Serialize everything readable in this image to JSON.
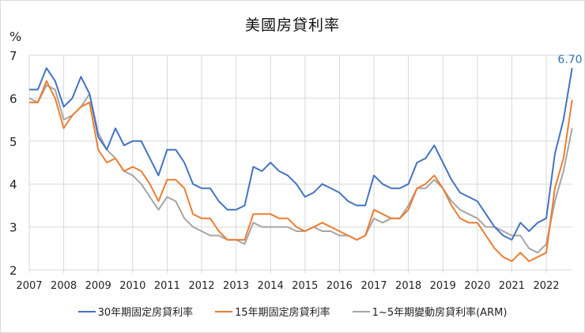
{
  "chart": {
    "title": "美國房貸利率",
    "y_unit": "%",
    "end_label": "6.70",
    "colors": {
      "s30": "#4472c4",
      "s15": "#ed7d31",
      "arm": "#a5a5a5",
      "label": "#2e75b6",
      "grid": "#d9d9d9"
    }
  },
  "legend": [
    {
      "label": "30年期固定房貸利率",
      "color": "#4472c4"
    },
    {
      "label": "15年期固定房貸利率",
      "color": "#ed7d31"
    },
    {
      "label": "1~5年期變動房貸利率(ARM)",
      "color": "#a5a5a5"
    }
  ],
  "chart_data": {
    "type": "line",
    "title": "美國房貸利率",
    "xlabel": "",
    "ylabel": "%",
    "ylim": [
      2,
      7
    ],
    "yticks": [
      2,
      3,
      4,
      5,
      6,
      7
    ],
    "xticks": [
      "2007",
      "2008",
      "2009",
      "2010",
      "2011",
      "2012",
      "2013",
      "2014",
      "2015",
      "2016",
      "2017",
      "2018",
      "2019",
      "2020",
      "2021",
      "2022"
    ],
    "grid": true,
    "legend_position": "bottom",
    "annotations": [
      {
        "text": "6.70",
        "x": 2022.75,
        "y": 6.7
      }
    ],
    "x": [
      2007.0,
      2007.25,
      2007.5,
      2007.75,
      2008.0,
      2008.25,
      2008.5,
      2008.75,
      2009.0,
      2009.25,
      2009.5,
      2009.75,
      2010.0,
      2010.25,
      2010.5,
      2010.75,
      2011.0,
      2011.25,
      2011.5,
      2011.75,
      2012.0,
      2012.25,
      2012.5,
      2012.75,
      2013.0,
      2013.25,
      2013.5,
      2013.75,
      2014.0,
      2014.25,
      2014.5,
      2014.75,
      2015.0,
      2015.25,
      2015.5,
      2015.75,
      2016.0,
      2016.25,
      2016.5,
      2016.75,
      2017.0,
      2017.25,
      2017.5,
      2017.75,
      2018.0,
      2018.25,
      2018.5,
      2018.75,
      2019.0,
      2019.25,
      2019.5,
      2019.75,
      2020.0,
      2020.25,
      2020.5,
      2020.75,
      2021.0,
      2021.25,
      2021.5,
      2021.75,
      2022.0,
      2022.25,
      2022.5,
      2022.75
    ],
    "series": [
      {
        "name": "30年期固定房貸利率",
        "values": [
          6.2,
          6.2,
          6.7,
          6.4,
          5.8,
          6.0,
          6.5,
          6.1,
          5.1,
          4.8,
          5.3,
          4.9,
          5.0,
          5.0,
          4.6,
          4.2,
          4.8,
          4.8,
          4.5,
          4.0,
          3.9,
          3.9,
          3.6,
          3.4,
          3.4,
          3.5,
          4.4,
          4.3,
          4.5,
          4.3,
          4.2,
          4.0,
          3.7,
          3.8,
          4.0,
          3.9,
          3.8,
          3.6,
          3.5,
          3.5,
          4.2,
          4.0,
          3.9,
          3.9,
          4.0,
          4.5,
          4.6,
          4.9,
          4.5,
          4.1,
          3.8,
          3.7,
          3.6,
          3.3,
          3.0,
          2.8,
          2.7,
          3.1,
          2.9,
          3.1,
          3.2,
          4.7,
          5.5,
          6.7
        ]
      },
      {
        "name": "15年期固定房貸利率",
        "values": [
          5.9,
          5.9,
          6.4,
          6.0,
          5.3,
          5.6,
          5.8,
          5.9,
          4.8,
          4.5,
          4.6,
          4.3,
          4.4,
          4.3,
          4.0,
          3.6,
          4.1,
          4.1,
          3.9,
          3.3,
          3.2,
          3.2,
          2.9,
          2.7,
          2.7,
          2.7,
          3.3,
          3.3,
          3.3,
          3.2,
          3.2,
          3.0,
          2.9,
          3.0,
          3.1,
          3.0,
          2.9,
          2.8,
          2.7,
          2.8,
          3.4,
          3.3,
          3.2,
          3.2,
          3.4,
          3.9,
          4.0,
          4.2,
          3.9,
          3.5,
          3.2,
          3.1,
          3.1,
          2.8,
          2.5,
          2.3,
          2.2,
          2.4,
          2.2,
          2.3,
          2.4,
          3.9,
          4.6,
          5.96
        ]
      },
      {
        "name": "1~5年期變動房貸利率(ARM)",
        "values": [
          6.0,
          5.9,
          6.3,
          6.2,
          5.5,
          5.6,
          5.8,
          6.1,
          5.2,
          4.8,
          4.6,
          4.3,
          4.2,
          4.0,
          3.7,
          3.4,
          3.7,
          3.6,
          3.2,
          3.0,
          2.9,
          2.8,
          2.8,
          2.7,
          2.7,
          2.6,
          3.1,
          3.0,
          3.0,
          3.0,
          3.0,
          2.9,
          2.9,
          3.0,
          2.9,
          2.9,
          2.8,
          2.8,
          2.7,
          2.8,
          3.2,
          3.1,
          3.2,
          3.2,
          3.5,
          3.9,
          3.9,
          4.1,
          3.9,
          3.6,
          3.4,
          3.3,
          3.2,
          3.0,
          3.0,
          2.9,
          2.8,
          2.8,
          2.5,
          2.4,
          2.6,
          3.6,
          4.3,
          5.3
        ]
      }
    ]
  }
}
